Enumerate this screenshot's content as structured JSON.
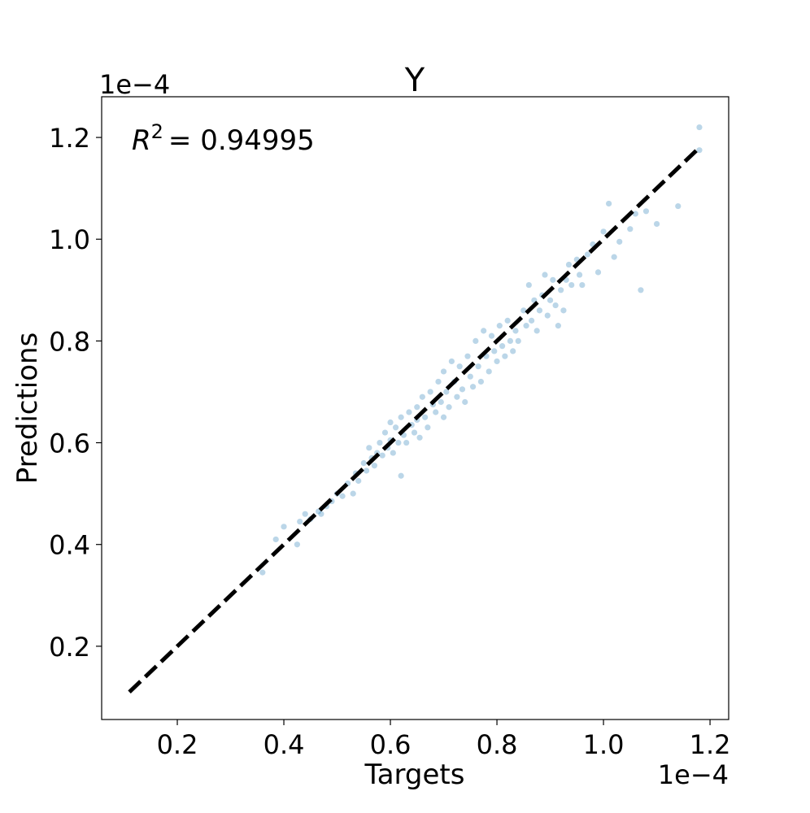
{
  "chart_data": {
    "type": "scatter",
    "title": "Y",
    "xlabel": "Targets",
    "ylabel": "Predictions",
    "x_offset_label": "1e−4",
    "y_offset_label": "1e−4",
    "annotation": {
      "base": "R",
      "sup": "2",
      "text": "= 0.94995"
    },
    "xlim": [
      0.058,
      1.235
    ],
    "ylim": [
      0.056,
      1.28
    ],
    "xticks": [
      0.2,
      0.4,
      0.6,
      0.8,
      {
        "value": 1,
        "label": "1.0"
      },
      1.2
    ],
    "yticks": [
      0.2,
      0.4,
      0.6,
      0.8,
      {
        "value": 1,
        "label": "1.0"
      },
      1.2
    ],
    "series": [
      {
        "color": "#1f77b4",
        "x": [
          0.36,
          0.385,
          0.4,
          0.425,
          0.43,
          0.44,
          0.45,
          0.465,
          0.47,
          0.48,
          0.49,
          0.5,
          0.51,
          0.52,
          0.53,
          0.535,
          0.54,
          0.55,
          0.555,
          0.56,
          0.565,
          0.57,
          0.575,
          0.58,
          0.585,
          0.59,
          0.595,
          0.6,
          0.6,
          0.605,
          0.61,
          0.615,
          0.62,
          0.62,
          0.625,
          0.63,
          0.635,
          0.64,
          0.645,
          0.65,
          0.65,
          0.655,
          0.66,
          0.665,
          0.67,
          0.675,
          0.68,
          0.685,
          0.69,
          0.695,
          0.7,
          0.7,
          0.705,
          0.71,
          0.715,
          0.72,
          0.725,
          0.73,
          0.735,
          0.74,
          0.745,
          0.75,
          0.755,
          0.76,
          0.765,
          0.77,
          0.775,
          0.78,
          0.785,
          0.79,
          0.795,
          0.8,
          0.805,
          0.81,
          0.815,
          0.82,
          0.825,
          0.83,
          0.835,
          0.84,
          0.85,
          0.855,
          0.86,
          0.865,
          0.87,
          0.875,
          0.88,
          0.885,
          0.89,
          0.895,
          0.9,
          0.905,
          0.91,
          0.915,
          0.92,
          0.925,
          0.93,
          0.935,
          0.94,
          0.95,
          0.955,
          0.96,
          0.97,
          0.98,
          0.99,
          1.0,
          1.01,
          1.02,
          1.03,
          1.05,
          1.06,
          1.07,
          1.08,
          1.1,
          1.14,
          1.18,
          1.18
        ],
        "values": [
          0.345,
          0.41,
          0.435,
          0.4,
          0.445,
          0.46,
          0.45,
          0.465,
          0.46,
          0.475,
          0.485,
          0.5,
          0.495,
          0.52,
          0.5,
          0.54,
          0.525,
          0.56,
          0.545,
          0.59,
          0.57,
          0.555,
          0.58,
          0.6,
          0.575,
          0.62,
          0.59,
          0.605,
          0.64,
          0.58,
          0.63,
          0.6,
          0.535,
          0.65,
          0.615,
          0.6,
          0.66,
          0.635,
          0.62,
          0.67,
          0.645,
          0.61,
          0.69,
          0.65,
          0.63,
          0.7,
          0.675,
          0.66,
          0.72,
          0.68,
          0.65,
          0.74,
          0.7,
          0.67,
          0.76,
          0.72,
          0.69,
          0.75,
          0.705,
          0.68,
          0.77,
          0.73,
          0.71,
          0.8,
          0.75,
          0.72,
          0.82,
          0.77,
          0.74,
          0.81,
          0.78,
          0.76,
          0.83,
          0.79,
          0.77,
          0.84,
          0.8,
          0.78,
          0.82,
          0.8,
          0.86,
          0.83,
          0.91,
          0.84,
          0.88,
          0.82,
          0.86,
          0.89,
          0.93,
          0.85,
          0.88,
          0.92,
          0.87,
          0.83,
          0.9,
          0.86,
          0.92,
          0.95,
          0.91,
          0.96,
          0.93,
          0.91,
          0.97,
          0.99,
          0.935,
          1.015,
          1.07,
          0.965,
          0.995,
          1.02,
          1.05,
          0.9,
          1.055,
          1.03,
          1.065,
          1.22,
          1.175
        ]
      },
      {
        "type": "line",
        "color": "#000000",
        "x": [
          0.11,
          1.18
        ],
        "values": [
          0.11,
          1.18
        ]
      }
    ]
  }
}
